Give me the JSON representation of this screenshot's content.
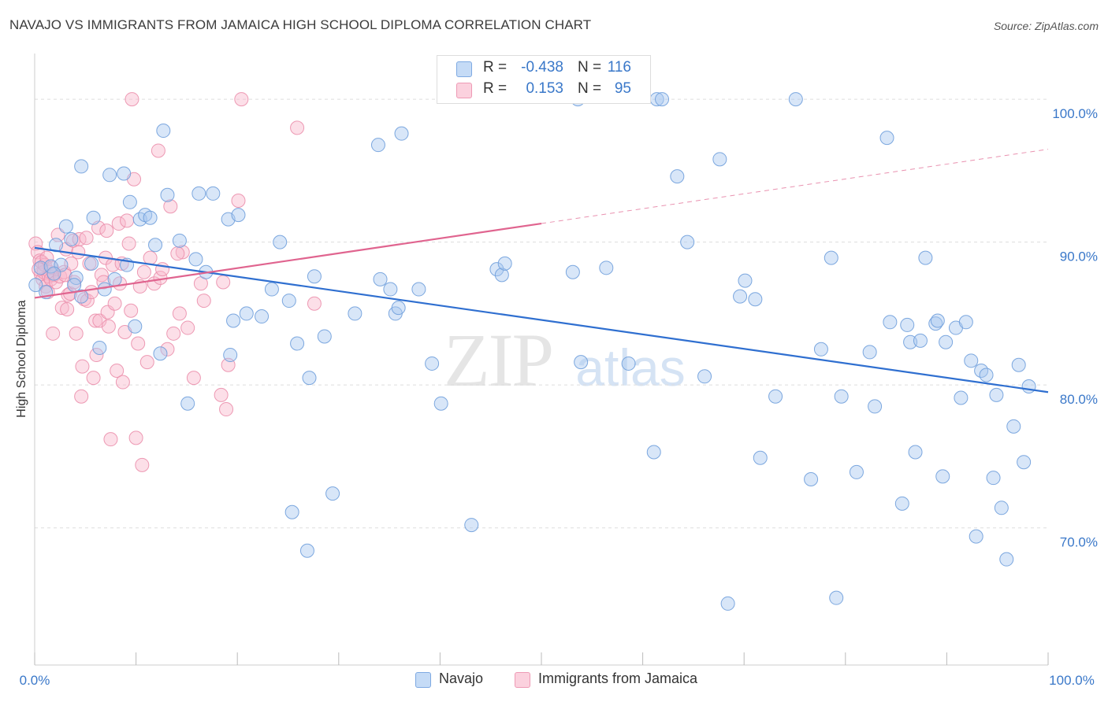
{
  "header": {
    "title": "NAVAJO VS IMMIGRANTS FROM JAMAICA HIGH SCHOOL DIPLOMA CORRELATION CHART",
    "source": "Source: ZipAtlas.com"
  },
  "watermark": {
    "zip": "ZIP",
    "atlas": "atlas"
  },
  "legend": {
    "rows": [
      {
        "r_label": "R =",
        "r_value": "-0.438",
        "n_label": "N =",
        "n_value": "116",
        "color": "#a9c8f0"
      },
      {
        "r_label": "R =",
        "r_value": "0.153",
        "n_label": "N =",
        "n_value": "95",
        "color": "#f8b9cc"
      }
    ]
  },
  "bottom_legend": {
    "navajo": "Navajo",
    "jamaica": "Immigrants from Jamaica"
  },
  "colors": {
    "navajo_fill": "#a9c8f0",
    "navajo_stroke": "#6f9fdc",
    "navajo_line": "#2f6fd0",
    "jamaica_fill": "#f8b9cc",
    "jamaica_stroke": "#eb8fac",
    "jamaica_line": "#e0648f",
    "tick_label": "#3a78c9"
  },
  "chart_data": {
    "type": "scatter",
    "title": "NAVAJO VS IMMIGRANTS FROM JAMAICA HIGH SCHOOL DIPLOMA CORRELATION CHART",
    "xlabel": "",
    "ylabel": "High School Diploma",
    "xlim": [
      0,
      100
    ],
    "ylim": [
      60.4,
      103.2
    ],
    "x_tick_labels": [
      "0.0%",
      "100.0%"
    ],
    "y_ticks": [
      70,
      80,
      90,
      100
    ],
    "y_tick_labels": [
      "70.0%",
      "80.0%",
      "90.0%",
      "100.0%"
    ],
    "grid": true,
    "series": [
      {
        "name": "Navajo",
        "trendline": {
          "x": [
            0,
            100
          ],
          "y": [
            89.6,
            79.5
          ]
        },
        "points": [
          [
            0.1,
            87.0
          ],
          [
            0.6,
            88.2
          ],
          [
            1.1,
            86.5
          ],
          [
            1.6,
            88.3
          ],
          [
            2.1,
            89.8
          ],
          [
            2.6,
            88.4
          ],
          [
            3.1,
            91.1
          ],
          [
            3.6,
            90.2
          ],
          [
            4.1,
            87.5
          ],
          [
            4.6,
            86.2
          ],
          [
            4.6,
            95.3
          ],
          [
            5.6,
            88.5
          ],
          [
            5.8,
            91.7
          ],
          [
            6.4,
            82.6
          ],
          [
            6.9,
            86.7
          ],
          [
            7.4,
            94.7
          ],
          [
            7.9,
            87.4
          ],
          [
            8.8,
            94.8
          ],
          [
            9.4,
            92.8
          ],
          [
            9.9,
            84.1
          ],
          [
            10.4,
            91.6
          ],
          [
            10.9,
            91.9
          ],
          [
            11.4,
            91.7
          ],
          [
            11.9,
            89.8
          ],
          [
            12.4,
            82.2
          ],
          [
            12.7,
            97.8
          ],
          [
            13.1,
            93.3
          ],
          [
            14.3,
            90.1
          ],
          [
            15.1,
            78.7
          ],
          [
            15.9,
            88.8
          ],
          [
            16.2,
            93.4
          ],
          [
            16.9,
            87.9
          ],
          [
            17.6,
            93.4
          ],
          [
            19.1,
            91.6
          ],
          [
            19.3,
            82.1
          ],
          [
            19.6,
            84.5
          ],
          [
            20.1,
            91.9
          ],
          [
            20.9,
            85.0
          ],
          [
            22.4,
            84.8
          ],
          [
            23.4,
            86.7
          ],
          [
            24.2,
            90.0
          ],
          [
            25.1,
            85.9
          ],
          [
            25.4,
            71.1
          ],
          [
            25.9,
            82.9
          ],
          [
            26.9,
            68.4
          ],
          [
            27.1,
            80.5
          ],
          [
            27.6,
            87.6
          ],
          [
            28.6,
            83.4
          ],
          [
            29.4,
            72.4
          ],
          [
            31.6,
            85.0
          ],
          [
            33.9,
            96.8
          ],
          [
            34.1,
            87.4
          ],
          [
            35.1,
            86.7
          ],
          [
            35.6,
            85.0
          ],
          [
            35.9,
            85.4
          ],
          [
            36.2,
            97.6
          ],
          [
            37.9,
            86.7
          ],
          [
            39.2,
            81.5
          ],
          [
            40.1,
            78.7
          ],
          [
            43.1,
            70.2
          ],
          [
            45.6,
            88.1
          ],
          [
            46.1,
            87.7
          ],
          [
            46.4,
            88.5
          ],
          [
            53.6,
            100.0
          ],
          [
            53.9,
            81.6
          ],
          [
            53.1,
            87.9
          ],
          [
            56.4,
            88.2
          ],
          [
            58.6,
            81.5
          ],
          [
            61.4,
            100.0
          ],
          [
            61.1,
            75.3
          ],
          [
            61.9,
            100.0
          ],
          [
            63.4,
            94.6
          ],
          [
            64.4,
            90.0
          ],
          [
            66.1,
            80.6
          ],
          [
            67.6,
            95.8
          ],
          [
            68.4,
            64.7
          ],
          [
            69.6,
            86.2
          ],
          [
            70.1,
            87.3
          ],
          [
            71.1,
            86.0
          ],
          [
            71.6,
            74.9
          ],
          [
            73.1,
            79.2
          ],
          [
            75.1,
            100.0
          ],
          [
            76.6,
            73.4
          ],
          [
            77.6,
            82.5
          ],
          [
            78.6,
            88.9
          ],
          [
            79.1,
            65.1
          ],
          [
            79.6,
            79.2
          ],
          [
            81.1,
            73.9
          ],
          [
            82.4,
            82.3
          ],
          [
            82.9,
            78.5
          ],
          [
            84.1,
            97.3
          ],
          [
            84.4,
            84.4
          ],
          [
            85.6,
            71.7
          ],
          [
            86.1,
            84.2
          ],
          [
            86.4,
            83.0
          ],
          [
            86.9,
            75.3
          ],
          [
            87.4,
            83.1
          ],
          [
            87.9,
            88.9
          ],
          [
            88.9,
            84.3
          ],
          [
            89.1,
            84.5
          ],
          [
            89.6,
            73.6
          ],
          [
            89.9,
            83.0
          ],
          [
            90.9,
            84.0
          ],
          [
            91.4,
            79.1
          ],
          [
            91.9,
            84.4
          ],
          [
            92.4,
            81.7
          ],
          [
            92.9,
            69.4
          ],
          [
            93.4,
            81.0
          ],
          [
            93.9,
            80.7
          ],
          [
            94.6,
            73.5
          ],
          [
            94.9,
            79.3
          ],
          [
            95.4,
            71.4
          ],
          [
            95.9,
            67.8
          ],
          [
            96.6,
            77.1
          ],
          [
            97.1,
            81.4
          ],
          [
            97.6,
            74.6
          ],
          [
            98.1,
            79.9
          ],
          [
            1.9,
            87.8
          ],
          [
            3.9,
            87.0
          ],
          [
            9.1,
            88.4
          ]
        ]
      },
      {
        "name": "Immigrants from Jamaica",
        "trendline": {
          "x": [
            0,
            50
          ],
          "y": [
            86.1,
            91.3
          ],
          "dashed_to": [
            100,
            96.5
          ]
        },
        "points": [
          [
            0.1,
            89.9
          ],
          [
            0.3,
            89.3
          ],
          [
            0.5,
            88.7
          ],
          [
            0.6,
            87.8
          ],
          [
            0.7,
            88.6
          ],
          [
            0.8,
            87.4
          ],
          [
            0.9,
            87.9
          ],
          [
            1.0,
            88.4
          ],
          [
            1.1,
            86.9
          ],
          [
            1.2,
            88.9
          ],
          [
            1.3,
            86.5
          ],
          [
            1.4,
            87.6
          ],
          [
            1.5,
            87.9
          ],
          [
            1.6,
            87.4
          ],
          [
            1.7,
            88.2
          ],
          [
            1.8,
            83.6
          ],
          [
            1.9,
            87.7
          ],
          [
            2.1,
            87.2
          ],
          [
            2.3,
            90.5
          ],
          [
            2.5,
            87.6
          ],
          [
            2.7,
            85.4
          ],
          [
            2.9,
            87.9
          ],
          [
            3.0,
            87.7
          ],
          [
            3.1,
            89.5
          ],
          [
            3.2,
            85.3
          ],
          [
            3.3,
            86.3
          ],
          [
            3.5,
            86.4
          ],
          [
            3.6,
            88.5
          ],
          [
            3.8,
            90.1
          ],
          [
            3.9,
            87.2
          ],
          [
            4.1,
            83.6
          ],
          [
            4.3,
            89.3
          ],
          [
            4.4,
            90.2
          ],
          [
            4.6,
            79.2
          ],
          [
            4.7,
            81.3
          ],
          [
            4.9,
            86.0
          ],
          [
            5.1,
            90.3
          ],
          [
            5.2,
            85.9
          ],
          [
            5.4,
            88.5
          ],
          [
            5.6,
            86.5
          ],
          [
            5.8,
            80.5
          ],
          [
            6.0,
            84.5
          ],
          [
            6.1,
            82.1
          ],
          [
            6.3,
            91.0
          ],
          [
            6.4,
            84.5
          ],
          [
            6.6,
            87.7
          ],
          [
            6.8,
            87.2
          ],
          [
            7.0,
            88.9
          ],
          [
            7.1,
            90.8
          ],
          [
            7.2,
            85.1
          ],
          [
            7.3,
            84.1
          ],
          [
            7.5,
            76.2
          ],
          [
            7.7,
            88.4
          ],
          [
            7.9,
            85.7
          ],
          [
            8.1,
            81.0
          ],
          [
            8.3,
            91.3
          ],
          [
            8.4,
            87.1
          ],
          [
            8.6,
            88.5
          ],
          [
            8.7,
            80.2
          ],
          [
            8.9,
            83.7
          ],
          [
            9.1,
            91.5
          ],
          [
            9.3,
            89.9
          ],
          [
            9.5,
            85.2
          ],
          [
            9.6,
            100.0
          ],
          [
            9.8,
            94.4
          ],
          [
            10.0,
            76.3
          ],
          [
            10.2,
            82.9
          ],
          [
            10.4,
            86.9
          ],
          [
            10.6,
            74.4
          ],
          [
            10.8,
            87.9
          ],
          [
            11.1,
            81.6
          ],
          [
            11.8,
            87.1
          ],
          [
            12.2,
            96.4
          ],
          [
            12.4,
            87.5
          ],
          [
            12.6,
            88.1
          ],
          [
            13.1,
            82.5
          ],
          [
            13.4,
            92.5
          ],
          [
            13.7,
            83.6
          ],
          [
            14.3,
            85.0
          ],
          [
            14.6,
            89.3
          ],
          [
            15.1,
            84.0
          ],
          [
            15.7,
            80.5
          ],
          [
            16.4,
            87.1
          ],
          [
            16.7,
            85.9
          ],
          [
            18.4,
            79.3
          ],
          [
            18.6,
            87.2
          ],
          [
            18.9,
            78.3
          ],
          [
            19.1,
            81.4
          ],
          [
            20.1,
            92.9
          ],
          [
            20.4,
            100.0
          ],
          [
            25.9,
            98.0
          ],
          [
            27.6,
            85.7
          ],
          [
            11.4,
            88.9
          ],
          [
            14.1,
            89.2
          ],
          [
            0.4,
            88.1
          ]
        ]
      }
    ]
  }
}
